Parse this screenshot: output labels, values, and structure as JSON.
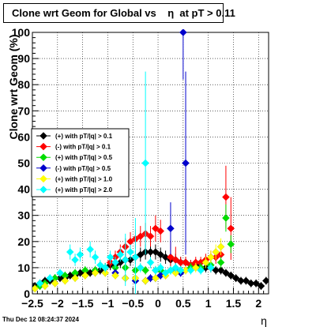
{
  "title": "Clone wrt Geom for Global vs    η  at pT > 0.11",
  "timestamp": "Thu Dec 12 08:24:37 2024",
  "chart_data": {
    "type": "scatter",
    "xlabel": "η",
    "ylabel": "Clone wrt Geom (%)",
    "xlim": [
      -2.5,
      2.2
    ],
    "ylim": [
      0,
      100
    ],
    "xticks": [
      -2.5,
      -2,
      -1.5,
      -1,
      -0.5,
      0,
      0.5,
      1,
      1.5,
      2
    ],
    "xtick_labels": [
      "−2.5",
      "−2",
      "−1.5",
      "−1",
      "−0.5",
      "0",
      "0.5",
      "1",
      "1.5",
      "2"
    ],
    "yticks": [
      0,
      10,
      20,
      30,
      40,
      50,
      60,
      70,
      80,
      90,
      100
    ],
    "ytick_labels": [
      "0",
      "10",
      "20",
      "30",
      "40",
      "50",
      "60",
      "70",
      "80",
      "90",
      "100"
    ],
    "grid": true,
    "legend_position": "middle-left",
    "series": [
      {
        "name": "(+) with pT/|q| > 0.1",
        "color": "#000000",
        "marker": "diamond",
        "points": [
          [
            -2.45,
            3
          ],
          [
            -2.35,
            4
          ],
          [
            -2.25,
            5
          ],
          [
            -2.15,
            5
          ],
          [
            -2.05,
            6
          ],
          [
            -1.95,
            6
          ],
          [
            -1.85,
            6
          ],
          [
            -1.75,
            7
          ],
          [
            -1.65,
            7
          ],
          [
            -1.55,
            8
          ],
          [
            -1.45,
            8
          ],
          [
            -1.35,
            8
          ],
          [
            -1.25,
            9
          ],
          [
            -1.15,
            9
          ],
          [
            -1.05,
            10
          ],
          [
            -0.95,
            11
          ],
          [
            -0.85,
            11
          ],
          [
            -0.75,
            12
          ],
          [
            -0.65,
            13
          ],
          [
            -0.55,
            13
          ],
          [
            -0.45,
            14
          ],
          [
            -0.35,
            15
          ],
          [
            -0.25,
            16
          ],
          [
            -0.15,
            16
          ],
          [
            -0.05,
            16
          ],
          [
            0.05,
            15
          ],
          [
            0.15,
            14
          ],
          [
            0.25,
            13
          ],
          [
            0.35,
            13
          ],
          [
            0.45,
            12
          ],
          [
            0.55,
            12
          ],
          [
            0.65,
            11
          ],
          [
            0.75,
            11
          ],
          [
            0.85,
            10
          ],
          [
            0.95,
            10
          ],
          [
            1.05,
            10
          ],
          [
            1.15,
            9
          ],
          [
            1.25,
            9
          ],
          [
            1.35,
            8
          ],
          [
            1.45,
            7
          ],
          [
            1.55,
            6
          ],
          [
            1.65,
            5
          ],
          [
            1.75,
            5
          ],
          [
            1.85,
            4
          ],
          [
            1.95,
            4
          ],
          [
            2.05,
            3
          ],
          [
            2.15,
            5
          ]
        ]
      },
      {
        "name": "(-) with pT/|q| > 0.1",
        "color": "#ff0000",
        "marker": "diamond",
        "points": [
          [
            -1.05,
            10
          ],
          [
            -0.95,
            12
          ],
          [
            -0.85,
            14
          ],
          [
            -0.75,
            16
          ],
          [
            -0.65,
            18
          ],
          [
            -0.55,
            20
          ],
          [
            -0.45,
            21
          ],
          [
            -0.35,
            22
          ],
          [
            -0.25,
            23
          ],
          [
            -0.15,
            22
          ],
          [
            -0.05,
            25
          ],
          [
            0.05,
            24
          ],
          [
            0.25,
            14
          ],
          [
            0.35,
            13
          ],
          [
            0.45,
            12
          ],
          [
            0.55,
            12
          ],
          [
            0.65,
            11
          ],
          [
            0.75,
            12
          ],
          [
            0.85,
            12
          ],
          [
            0.95,
            13
          ],
          [
            1.05,
            14
          ],
          [
            1.15,
            14
          ],
          [
            1.25,
            15
          ],
          [
            1.35,
            37
          ],
          [
            1.45,
            25
          ]
        ],
        "err": [
          [
            -0.05,
            5
          ],
          [
            0.25,
            6
          ],
          [
            0.35,
            5
          ],
          [
            1.35,
            12
          ],
          [
            1.45,
            12
          ]
        ]
      },
      {
        "name": "(+) with pT/|q| > 0.5",
        "color": "#00dd00",
        "marker": "diamond",
        "points": [
          [
            -2.35,
            3
          ],
          [
            -2.25,
            4
          ],
          [
            -2.05,
            6
          ],
          [
            -1.85,
            7
          ],
          [
            -1.65,
            8
          ],
          [
            -1.45,
            9
          ],
          [
            -1.25,
            9
          ],
          [
            -1.05,
            10
          ],
          [
            -0.85,
            10
          ],
          [
            -0.65,
            10
          ],
          [
            -0.45,
            9
          ],
          [
            -0.25,
            9
          ],
          [
            -0.05,
            9
          ],
          [
            0.05,
            9
          ],
          [
            0.25,
            9
          ],
          [
            0.45,
            9
          ],
          [
            0.65,
            10
          ],
          [
            0.85,
            10
          ],
          [
            1.05,
            11
          ],
          [
            1.25,
            12
          ],
          [
            1.35,
            29
          ],
          [
            1.45,
            19
          ]
        ]
      },
      {
        "name": "(-) with pT/|q| > 0.5",
        "color": "#0000cc",
        "marker": "diamond",
        "points": [
          [
            -0.85,
            8
          ],
          [
            -0.65,
            6
          ],
          [
            -0.45,
            5
          ],
          [
            -0.25,
            5
          ],
          [
            -0.15,
            6
          ],
          [
            -0.05,
            6
          ],
          [
            0.05,
            7
          ],
          [
            0.25,
            25
          ],
          [
            0.35,
            9
          ],
          [
            0.45,
            8
          ],
          [
            0.55,
            50
          ],
          [
            0.5,
            100
          ]
        ],
        "err": [
          [
            0.55,
            35
          ],
          [
            0.25,
            10
          ]
        ]
      },
      {
        "name": "(+) with pT/|q| > 1.0",
        "color": "#ffff00",
        "marker": "diamond",
        "points": [
          [
            -2.45,
            2
          ],
          [
            -2.25,
            3
          ],
          [
            -2.05,
            4
          ],
          [
            -1.85,
            5
          ],
          [
            -1.65,
            6
          ],
          [
            -1.45,
            7
          ],
          [
            -1.25,
            8
          ],
          [
            -1.05,
            8
          ],
          [
            -0.85,
            7
          ],
          [
            -0.65,
            6
          ],
          [
            -0.45,
            6
          ],
          [
            -0.25,
            5
          ],
          [
            -0.05,
            6
          ],
          [
            0.15,
            7
          ],
          [
            0.35,
            8
          ],
          [
            0.55,
            9
          ],
          [
            0.75,
            10
          ],
          [
            0.95,
            12
          ],
          [
            1.05,
            14
          ],
          [
            1.15,
            16
          ],
          [
            1.25,
            18
          ]
        ]
      },
      {
        "name": "(+) with pT/|q| > 2.0",
        "color": "#00ffff",
        "marker": "diamond",
        "points": [
          [
            -2.35,
            4
          ],
          [
            -2.15,
            6
          ],
          [
            -1.95,
            8
          ],
          [
            -1.75,
            16
          ],
          [
            -1.65,
            13
          ],
          [
            -1.55,
            15
          ],
          [
            -1.35,
            17
          ],
          [
            -1.25,
            14
          ],
          [
            -1.15,
            11
          ],
          [
            -1.05,
            10
          ],
          [
            -0.95,
            14
          ],
          [
            -0.85,
            12
          ],
          [
            -0.75,
            15
          ],
          [
            -0.65,
            13
          ],
          [
            -0.55,
            16
          ],
          [
            -0.45,
            14
          ],
          [
            -0.35,
            10
          ],
          [
            -0.25,
            50
          ],
          [
            -0.15,
            12
          ],
          [
            -0.05,
            9
          ],
          [
            0.05,
            10
          ],
          [
            0.15,
            8
          ],
          [
            0.25,
            9
          ],
          [
            0.35,
            10
          ],
          [
            0.45,
            9
          ],
          [
            0.65,
            9
          ],
          [
            0.85,
            9
          ],
          [
            1.05,
            10
          ]
        ],
        "err": [
          [
            -0.25,
            35
          ],
          [
            -0.45,
            15
          ],
          [
            -0.65,
            10
          ]
        ]
      }
    ]
  }
}
